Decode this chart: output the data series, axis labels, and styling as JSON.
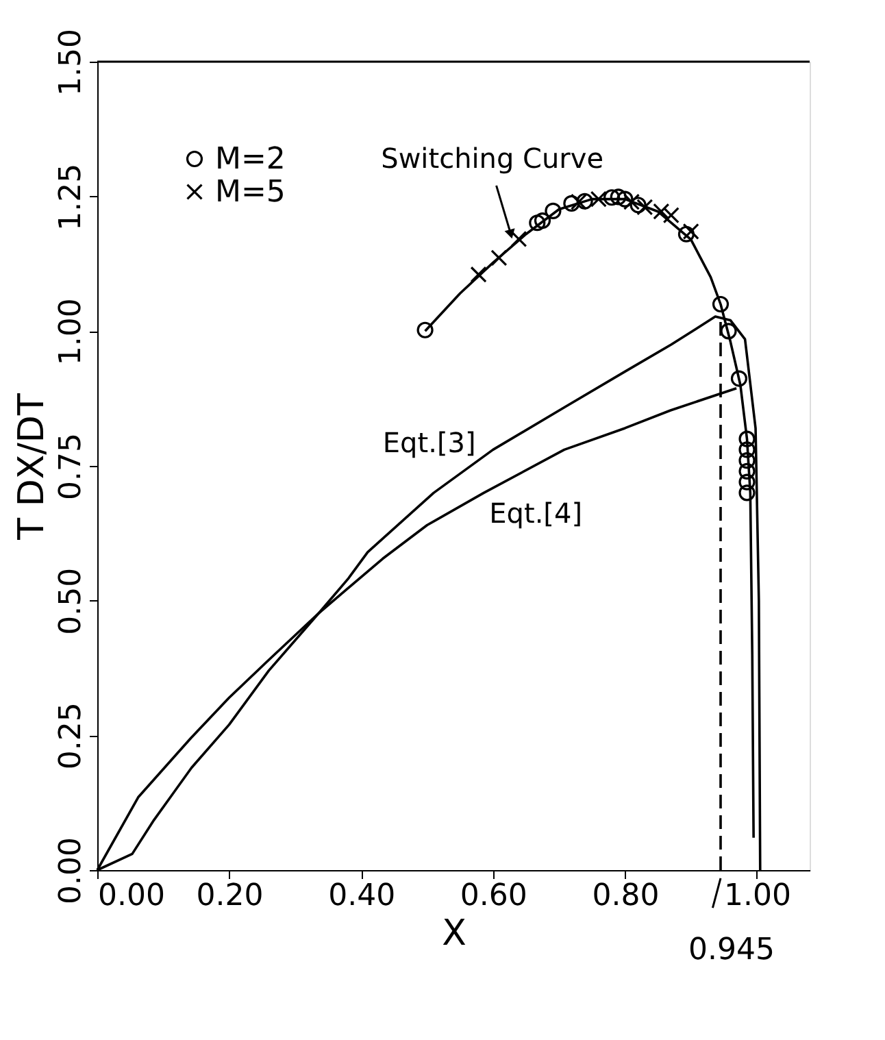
{
  "chart_data": {
    "type": "line",
    "xlabel": "X",
    "ylabel": "T DX/DT",
    "xlim": [
      0,
      1.08
    ],
    "ylim": [
      0,
      1.5
    ],
    "xticks": [
      {
        "value": 0,
        "label": "0.00"
      },
      {
        "value": 0.2,
        "label": "0.20"
      },
      {
        "value": 0.4,
        "label": "0.40"
      },
      {
        "value": 0.6,
        "label": "0.60"
      },
      {
        "value": 0.8,
        "label": "0.80"
      },
      {
        "value": 1.0,
        "label": "1.00"
      }
    ],
    "yticks": [
      {
        "value": 0,
        "label": "0.00"
      },
      {
        "value": 0.25,
        "label": "0.25"
      },
      {
        "value": 0.5,
        "label": "0.50"
      },
      {
        "value": 0.75,
        "label": "0.75"
      },
      {
        "value": 1.0,
        "label": "1.00"
      },
      {
        "value": 1.25,
        "label": "1.25"
      },
      {
        "value": 1.5,
        "label": "1.50"
      }
    ],
    "grid": false,
    "legend": "top left",
    "line_style": "solid",
    "series": [
      {
        "name": "Eqt.[3]",
        "color": "#000000",
        "x": [
          0,
          0.053,
          0.086,
          0.143,
          0.2,
          0.26,
          0.336,
          0.38,
          0.41,
          0.51,
          0.6,
          0.71,
          0.8,
          0.87,
          0.937,
          0.96,
          0.982,
          0.998,
          1.003,
          1.005
        ],
        "values": [
          0,
          0.03,
          0.093,
          0.19,
          0.27,
          0.37,
          0.477,
          0.54,
          0.59,
          0.7,
          0.78,
          0.86,
          0.925,
          0.975,
          1.027,
          1.02,
          0.985,
          0.82,
          0.5,
          0
        ]
      },
      {
        "name": "Eqt.[4]",
        "color": "#000000",
        "x": [
          0,
          0.062,
          0.142,
          0.2,
          0.26,
          0.336,
          0.433,
          0.5,
          0.586,
          0.708,
          0.8,
          0.869,
          0.969
        ],
        "values": [
          0,
          0.135,
          0.245,
          0.32,
          0.39,
          0.477,
          0.578,
          0.64,
          0.7,
          0.78,
          0.82,
          0.853,
          0.894
        ]
      },
      {
        "color": "#000000",
        "x": [
          0.497,
          0.55,
          0.6,
          0.65,
          0.7,
          0.75,
          0.8,
          0.85,
          0.9,
          0.93,
          0.945,
          0.96,
          0.975,
          0.985,
          0.99,
          0.993,
          0.995
        ],
        "values": [
          1.0,
          1.07,
          1.127,
          1.18,
          1.226,
          1.245,
          1.245,
          1.222,
          1.17,
          1.1,
          1.05,
          0.98,
          0.9,
          0.8,
          0.7,
          0.4,
          0.06
        ]
      },
      {
        "type": "scatter",
        "name": "M=2",
        "color": "#000000",
        "marker": "circle",
        "x": [
          0.497,
          0.667,
          0.675,
          0.691,
          0.719,
          0.739,
          0.78,
          0.79,
          0.8,
          0.82,
          0.893,
          0.945,
          0.957,
          0.973,
          0.985,
          0.985,
          0.985,
          0.985,
          0.985,
          0.985
        ],
        "values": [
          1.002,
          1.201,
          1.205,
          1.223,
          1.237,
          1.241,
          1.248,
          1.249,
          1.245,
          1.234,
          1.18,
          1.05,
          1.0,
          0.912,
          0.8,
          0.78,
          0.76,
          0.74,
          0.72,
          0.7
        ]
      },
      {
        "type": "scatter",
        "name": "M=5",
        "color": "#000000",
        "marker": "cross",
        "x": [
          0.578,
          0.609,
          0.639,
          0.73,
          0.76,
          0.81,
          0.83,
          0.855,
          0.87,
          0.9
        ],
        "values": [
          1.105,
          1.136,
          1.171,
          1.24,
          1.245,
          1.24,
          1.23,
          1.222,
          1.215,
          1.185
        ]
      }
    ],
    "ref_lines": [
      {
        "axis": "x",
        "value": 0.945,
        "label": "0.945",
        "line_style": "dashed",
        "color": "#000000"
      }
    ],
    "annotations": [
      {
        "text": "Switching Curve",
        "x": 0.63,
        "y": 1.16
      }
    ]
  }
}
